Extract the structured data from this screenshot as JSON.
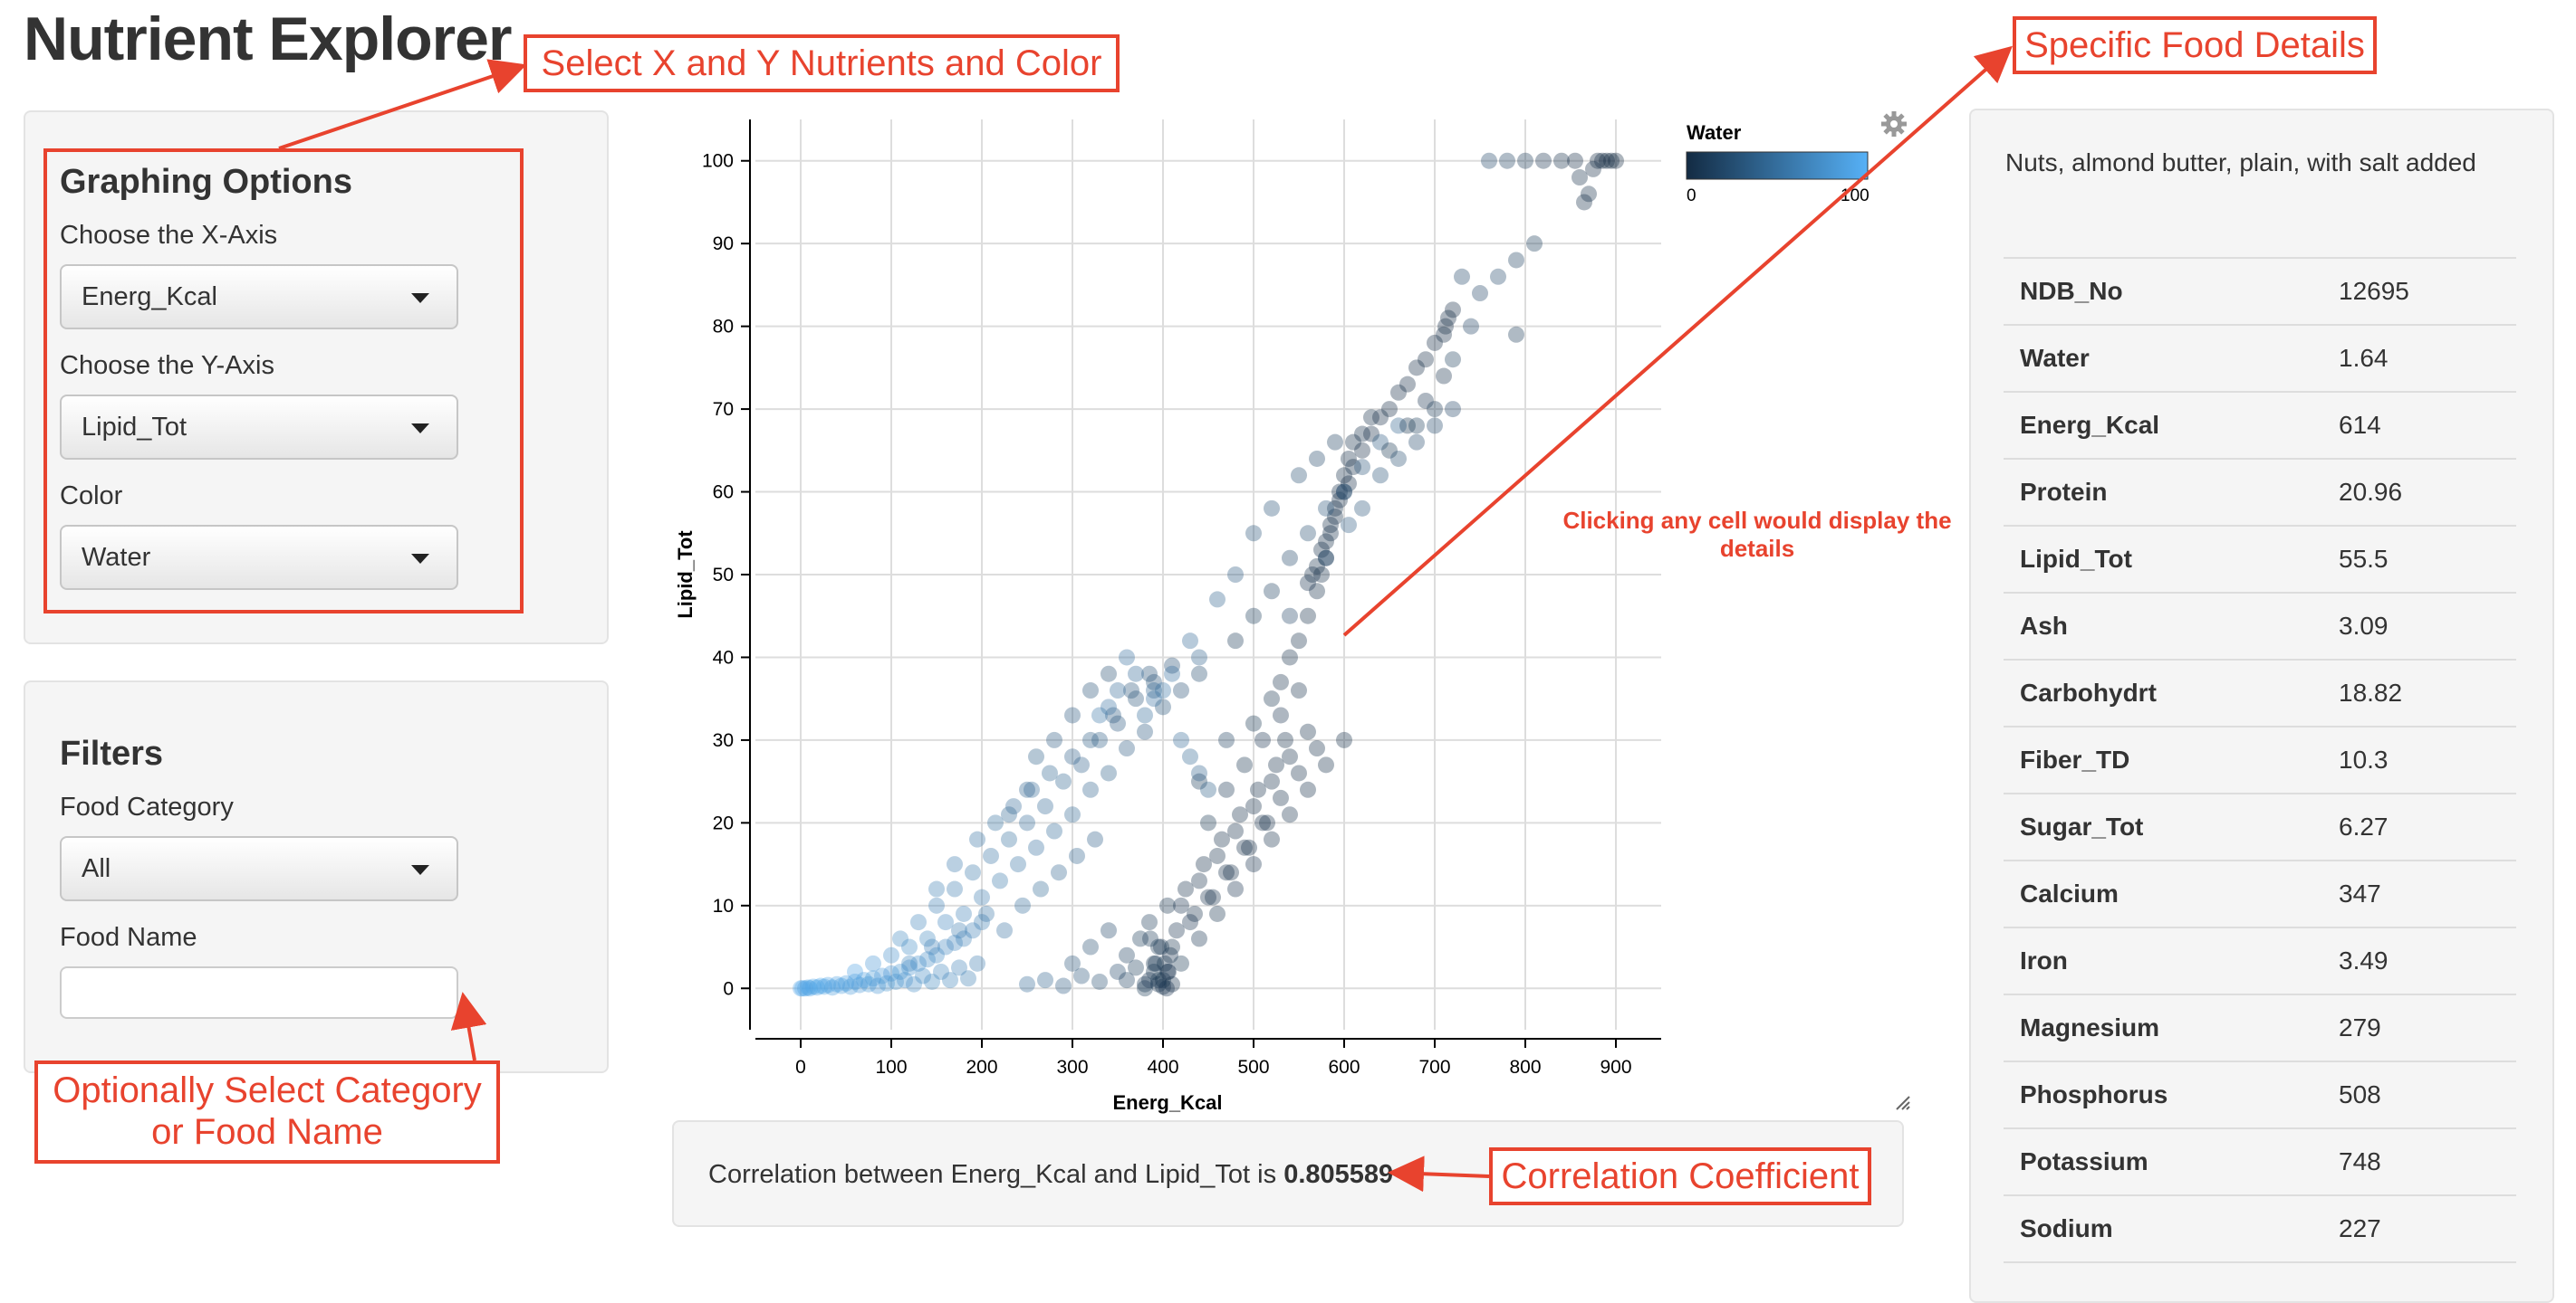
{
  "app": {
    "title": "Nutrient Explorer"
  },
  "graphing_options": {
    "heading": "Graphing Options",
    "x_axis": {
      "label": "Choose the X-Axis",
      "value": "Energ_Kcal"
    },
    "y_axis": {
      "label": "Choose the Y-Axis",
      "value": "Lipid_Tot"
    },
    "color": {
      "label": "Color",
      "value": "Water"
    }
  },
  "filters": {
    "heading": "Filters",
    "category": {
      "label": "Food Category",
      "value": "All"
    },
    "food_name": {
      "label": "Food Name",
      "value": "",
      "placeholder": ""
    }
  },
  "annotations": {
    "select_nutrients": "Select X and Y Nutrients and Color",
    "specific_details": "Specific Food Details",
    "optional_line1": "Optionally Select Category",
    "optional_line2": "or Food Name",
    "click_cell_line1": "Clicking any  cell would display the",
    "click_cell_line2": "details",
    "correlation_coefficient": "Correlation Coefficient",
    "annotation_color": "#e8432e"
  },
  "correlation": {
    "prefix": "Correlation between Energ_Kcal and Lipid_Tot is",
    "value": "0.805589"
  },
  "details": {
    "food_name": "Nuts, almond butter, plain, with salt added",
    "rows": [
      {
        "label": "NDB_No",
        "value": "12695"
      },
      {
        "label": "Water",
        "value": "1.64"
      },
      {
        "label": "Energ_Kcal",
        "value": "614"
      },
      {
        "label": "Protein",
        "value": "20.96"
      },
      {
        "label": "Lipid_Tot",
        "value": "55.5"
      },
      {
        "label": "Ash",
        "value": "3.09"
      },
      {
        "label": "Carbohydrt",
        "value": "18.82"
      },
      {
        "label": "Fiber_TD",
        "value": "10.3"
      },
      {
        "label": "Sugar_Tot",
        "value": "6.27"
      },
      {
        "label": "Calcium",
        "value": "347"
      },
      {
        "label": "Iron",
        "value": "3.49"
      },
      {
        "label": "Magnesium",
        "value": "279"
      },
      {
        "label": "Phosphorus",
        "value": "508"
      },
      {
        "label": "Potassium",
        "value": "748"
      },
      {
        "label": "Sodium",
        "value": "227"
      }
    ]
  },
  "icons": {
    "settings": "gear-icon",
    "resize": "resize-handle-icon"
  },
  "chart_data": {
    "type": "scatter",
    "xlabel": "Energ_Kcal",
    "ylabel": "Lipid_Tot",
    "xlim": [
      -50,
      950
    ],
    "ylim": [
      -5,
      105
    ],
    "x_ticks": [
      0,
      100,
      200,
      300,
      400,
      500,
      600,
      700,
      800,
      900
    ],
    "y_ticks": [
      0,
      10,
      20,
      30,
      40,
      50,
      60,
      70,
      80,
      90,
      100
    ],
    "grid": true,
    "color_legend": {
      "title": "Water",
      "min": 0,
      "max": 100,
      "color_low": "#132b43",
      "color_high": "#56b1f7",
      "placement": "top-right"
    },
    "points": [
      [
        0,
        0,
        90
      ],
      [
        2,
        0,
        95
      ],
      [
        5,
        0,
        85
      ],
      [
        8,
        0.1,
        92
      ],
      [
        10,
        0,
        88
      ],
      [
        14,
        0.2,
        91
      ],
      [
        18,
        0.1,
        87
      ],
      [
        22,
        0.3,
        93
      ],
      [
        26,
        0.2,
        89
      ],
      [
        30,
        0.4,
        90
      ],
      [
        35,
        0.1,
        86
      ],
      [
        40,
        0.5,
        88
      ],
      [
        45,
        0.3,
        85
      ],
      [
        50,
        0.6,
        87
      ],
      [
        55,
        0.2,
        84
      ],
      [
        60,
        0.8,
        86
      ],
      [
        65,
        0.4,
        82
      ],
      [
        70,
        1,
        85
      ],
      [
        75,
        0.5,
        81
      ],
      [
        80,
        1.2,
        83
      ],
      [
        85,
        0.3,
        80
      ],
      [
        90,
        1.5,
        82
      ],
      [
        95,
        0.6,
        78
      ],
      [
        100,
        1.8,
        80
      ],
      [
        105,
        0.8,
        76
      ],
      [
        110,
        2,
        78
      ],
      [
        115,
        1,
        75
      ],
      [
        120,
        2.5,
        77
      ],
      [
        125,
        0.5,
        73
      ],
      [
        130,
        3,
        75
      ],
      [
        135,
        1.5,
        71
      ],
      [
        140,
        3.5,
        73
      ],
      [
        145,
        0.8,
        70
      ],
      [
        150,
        4,
        71
      ],
      [
        155,
        2,
        68
      ],
      [
        160,
        5,
        69
      ],
      [
        165,
        1,
        66
      ],
      [
        170,
        5.5,
        67
      ],
      [
        175,
        2.5,
        64
      ],
      [
        180,
        6,
        65
      ],
      [
        185,
        1.2,
        62
      ],
      [
        190,
        7,
        63
      ],
      [
        195,
        3,
        60
      ],
      [
        200,
        8,
        61
      ],
      [
        60,
        2,
        88
      ],
      [
        80,
        3,
        80
      ],
      [
        100,
        4,
        75
      ],
      [
        120,
        5,
        72
      ],
      [
        140,
        6,
        70
      ],
      [
        160,
        8,
        67
      ],
      [
        180,
        9,
        64
      ],
      [
        200,
        11,
        60
      ],
      [
        220,
        13,
        57
      ],
      [
        240,
        15,
        54
      ],
      [
        260,
        17,
        50
      ],
      [
        280,
        19,
        47
      ],
      [
        300,
        21,
        44
      ],
      [
        320,
        24,
        41
      ],
      [
        340,
        26,
        38
      ],
      [
        360,
        29,
        35
      ],
      [
        380,
        31,
        32
      ],
      [
        400,
        34,
        29
      ],
      [
        420,
        36,
        26
      ],
      [
        440,
        38,
        24
      ],
      [
        110,
        6,
        70
      ],
      [
        130,
        8,
        66
      ],
      [
        150,
        10,
        63
      ],
      [
        170,
        12,
        60
      ],
      [
        190,
        14,
        57
      ],
      [
        210,
        16,
        54
      ],
      [
        230,
        18,
        51
      ],
      [
        250,
        20,
        48
      ],
      [
        270,
        22,
        45
      ],
      [
        290,
        25,
        42
      ],
      [
        310,
        27,
        39
      ],
      [
        330,
        30,
        36
      ],
      [
        350,
        32,
        33
      ],
      [
        370,
        35,
        30
      ],
      [
        390,
        37,
        28
      ],
      [
        410,
        39,
        26
      ],
      [
        150,
        12,
        62
      ],
      [
        170,
        15,
        58
      ],
      [
        195,
        18,
        54
      ],
      [
        215,
        20,
        51
      ],
      [
        235,
        22,
        48
      ],
      [
        255,
        24,
        45
      ],
      [
        275,
        26,
        42
      ],
      [
        300,
        28,
        39
      ],
      [
        320,
        30,
        36
      ],
      [
        345,
        33,
        33
      ],
      [
        365,
        36,
        30
      ],
      [
        385,
        38,
        28
      ],
      [
        120,
        3,
        68
      ],
      [
        145,
        5,
        64
      ],
      [
        175,
        7,
        60
      ],
      [
        205,
        9,
        55
      ],
      [
        225,
        7,
        52
      ],
      [
        245,
        10,
        49
      ],
      [
        265,
        12,
        46
      ],
      [
        285,
        14,
        43
      ],
      [
        305,
        16,
        40
      ],
      [
        325,
        18,
        37
      ],
      [
        280,
        30,
        35
      ],
      [
        260,
        28,
        38
      ],
      [
        300,
        33,
        32
      ],
      [
        250,
        24,
        40
      ],
      [
        230,
        21,
        44
      ],
      [
        320,
        36,
        28
      ],
      [
        340,
        38,
        25
      ],
      [
        250,
        0.5,
        45
      ],
      [
        270,
        1,
        40
      ],
      [
        290,
        0.3,
        35
      ],
      [
        310,
        1.5,
        30
      ],
      [
        330,
        0.8,
        25
      ],
      [
        350,
        2,
        20
      ],
      [
        360,
        1,
        15
      ],
      [
        370,
        2.5,
        12
      ],
      [
        380,
        0.5,
        10
      ],
      [
        390,
        3,
        8
      ],
      [
        395,
        1,
        6
      ],
      [
        400,
        0.2,
        5
      ],
      [
        405,
        2,
        4
      ],
      [
        410,
        0.5,
        3
      ],
      [
        300,
        3,
        30
      ],
      [
        320,
        5,
        25
      ],
      [
        340,
        7,
        20
      ],
      [
        360,
        4,
        15
      ],
      [
        375,
        6,
        12
      ],
      [
        385,
        8,
        10
      ],
      [
        395,
        5,
        8
      ],
      [
        405,
        10,
        6
      ],
      [
        415,
        7,
        5
      ],
      [
        425,
        12,
        4
      ],
      [
        435,
        9,
        4
      ],
      [
        445,
        15,
        3
      ],
      [
        455,
        11,
        3
      ],
      [
        465,
        18,
        3
      ],
      [
        475,
        14,
        2
      ],
      [
        485,
        21,
        2
      ],
      [
        495,
        17,
        2
      ],
      [
        505,
        24,
        2
      ],
      [
        515,
        20,
        2
      ],
      [
        525,
        27,
        2
      ],
      [
        535,
        30,
        2
      ],
      [
        380,
        0,
        10
      ],
      [
        385,
        1,
        9
      ],
      [
        390,
        2,
        8
      ],
      [
        395,
        0.5,
        7
      ],
      [
        400,
        1,
        6
      ],
      [
        402,
        3,
        6
      ],
      [
        404,
        0,
        5
      ],
      [
        406,
        2,
        5
      ],
      [
        408,
        4,
        5
      ],
      [
        398,
        5,
        7
      ],
      [
        392,
        3,
        9
      ],
      [
        386,
        6,
        10
      ],
      [
        410,
        5,
        6
      ],
      [
        420,
        10,
        5
      ],
      [
        430,
        8,
        5
      ],
      [
        440,
        13,
        4
      ],
      [
        450,
        11,
        4
      ],
      [
        460,
        16,
        4
      ],
      [
        470,
        14,
        3
      ],
      [
        480,
        19,
        3
      ],
      [
        490,
        17,
        3
      ],
      [
        500,
        22,
        3
      ],
      [
        510,
        20,
        3
      ],
      [
        520,
        25,
        2
      ],
      [
        530,
        23,
        2
      ],
      [
        540,
        28,
        2
      ],
      [
        550,
        26,
        2
      ],
      [
        560,
        31,
        2
      ],
      [
        570,
        29,
        2
      ],
      [
        420,
        3,
        8
      ],
      [
        440,
        6,
        7
      ],
      [
        460,
        9,
        6
      ],
      [
        480,
        12,
        5
      ],
      [
        500,
        15,
        5
      ],
      [
        520,
        18,
        4
      ],
      [
        540,
        21,
        4
      ],
      [
        560,
        24,
        3
      ],
      [
        580,
        27,
        3
      ],
      [
        600,
        30,
        3
      ],
      [
        450,
        20,
        8
      ],
      [
        470,
        24,
        7
      ],
      [
        490,
        27,
        6
      ],
      [
        510,
        30,
        5
      ],
      [
        530,
        33,
        5
      ],
      [
        550,
        36,
        4
      ],
      [
        470,
        30,
        15
      ],
      [
        440,
        25,
        12
      ],
      [
        500,
        32,
        8
      ],
      [
        520,
        35,
        6
      ],
      [
        530,
        37,
        4
      ],
      [
        540,
        40,
        4
      ],
      [
        550,
        42,
        3
      ],
      [
        560,
        45,
        3
      ],
      [
        570,
        48,
        3
      ],
      [
        575,
        50,
        2
      ],
      [
        580,
        52,
        2
      ],
      [
        585,
        55,
        2
      ],
      [
        590,
        58,
        2
      ],
      [
        595,
        60,
        2
      ],
      [
        600,
        62,
        2
      ],
      [
        605,
        64,
        2
      ],
      [
        610,
        66,
        2
      ],
      [
        620,
        67,
        2
      ],
      [
        630,
        69,
        2
      ],
      [
        560,
        49,
        5
      ],
      [
        565,
        50,
        4
      ],
      [
        570,
        51,
        4
      ],
      [
        575,
        53,
        3
      ],
      [
        580,
        54,
        3
      ],
      [
        585,
        56,
        3
      ],
      [
        590,
        57,
        2
      ],
      [
        595,
        59,
        2
      ],
      [
        600,
        60,
        1
      ],
      [
        605,
        61,
        1
      ],
      [
        610,
        63,
        2
      ],
      [
        620,
        65,
        1
      ],
      [
        630,
        67,
        1
      ],
      [
        640,
        69,
        1
      ],
      [
        650,
        70,
        1
      ],
      [
        660,
        72,
        1
      ],
      [
        670,
        73,
        1
      ],
      [
        680,
        75,
        1
      ],
      [
        690,
        76,
        1
      ],
      [
        700,
        78,
        1
      ],
      [
        710,
        79,
        1
      ],
      [
        712,
        80,
        1
      ],
      [
        715,
        81,
        0.5
      ],
      [
        720,
        82,
        0.5
      ],
      [
        480,
        42,
        10
      ],
      [
        500,
        45,
        12
      ],
      [
        520,
        48,
        15
      ],
      [
        540,
        52,
        20
      ],
      [
        560,
        55,
        25
      ],
      [
        580,
        58,
        30
      ],
      [
        600,
        60,
        35
      ],
      [
        540,
        45,
        18
      ],
      [
        580,
        52,
        22
      ],
      [
        620,
        63,
        30
      ],
      [
        640,
        66,
        35
      ],
      [
        660,
        68,
        40
      ],
      [
        500,
        55,
        30
      ],
      [
        480,
        50,
        35
      ],
      [
        460,
        47,
        40
      ],
      [
        520,
        58,
        28
      ],
      [
        550,
        62,
        25
      ],
      [
        570,
        64,
        20
      ],
      [
        590,
        66,
        15
      ],
      [
        760,
        100,
        20
      ],
      [
        780,
        100,
        15
      ],
      [
        800,
        100,
        10
      ],
      [
        820,
        100,
        5
      ],
      [
        840,
        100,
        3
      ],
      [
        855,
        100,
        1
      ],
      [
        860,
        98,
        2
      ],
      [
        865,
        95,
        2
      ],
      [
        870,
        96,
        2
      ],
      [
        875,
        99,
        1
      ],
      [
        880,
        100,
        0.5
      ],
      [
        885,
        100,
        0.3
      ],
      [
        890,
        100,
        0.2
      ],
      [
        895,
        100,
        0.1
      ],
      [
        900,
        100,
        0
      ],
      [
        730,
        86,
        20
      ],
      [
        750,
        84,
        18
      ],
      [
        770,
        86,
        22
      ],
      [
        790,
        88,
        15
      ],
      [
        810,
        90,
        12
      ],
      [
        790,
        79,
        10
      ],
      [
        720,
        76,
        14
      ],
      [
        740,
        80,
        16
      ],
      [
        650,
        65,
        8
      ],
      [
        670,
        68,
        6
      ],
      [
        690,
        71,
        5
      ],
      [
        710,
        74,
        4
      ],
      [
        700,
        70,
        10
      ],
      [
        680,
        68,
        12
      ],
      [
        605,
        56,
        35
      ],
      [
        620,
        58,
        30
      ],
      [
        640,
        62,
        28
      ],
      [
        660,
        64,
        25
      ],
      [
        680,
        66,
        22
      ],
      [
        700,
        68,
        20
      ],
      [
        720,
        70,
        18
      ],
      [
        430,
        42,
        45
      ],
      [
        440,
        40,
        40
      ],
      [
        410,
        38,
        50
      ],
      [
        400,
        36,
        55
      ],
      [
        390,
        35,
        52
      ],
      [
        420,
        30,
        48
      ],
      [
        430,
        28,
        44
      ],
      [
        440,
        26,
        40
      ],
      [
        450,
        24,
        38
      ],
      [
        360,
        40,
        50
      ],
      [
        370,
        38,
        45
      ],
      [
        350,
        36,
        48
      ],
      [
        340,
        34,
        52
      ],
      [
        330,
        33,
        55
      ],
      [
        380,
        33,
        47
      ],
      [
        390,
        36,
        43
      ]
    ]
  }
}
